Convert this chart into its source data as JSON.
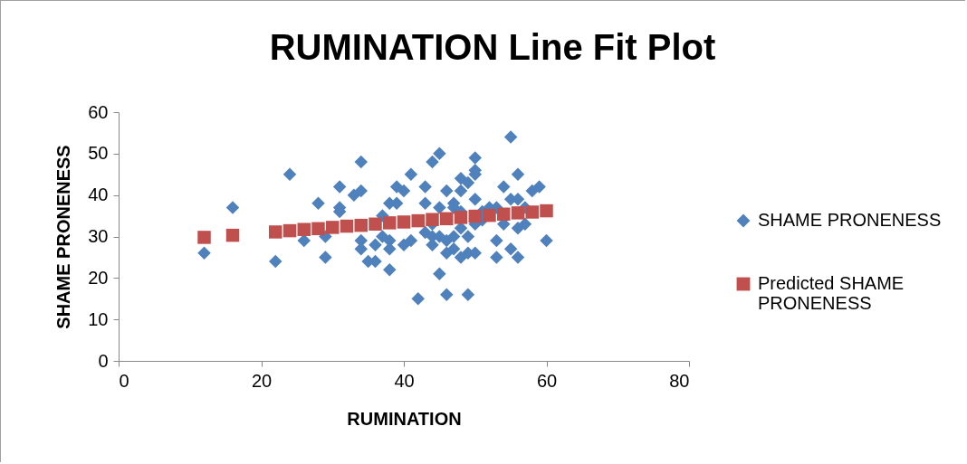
{
  "chart_data": {
    "type": "scatter",
    "title": "RUMINATION Line Fit  Plot",
    "xlabel": "RUMINATION",
    "ylabel": "SHAME PRONENESS",
    "xlim": [
      0,
      80
    ],
    "ylim": [
      0,
      60
    ],
    "xticks": [
      0,
      20,
      40,
      60,
      80
    ],
    "yticks": [
      0,
      10,
      20,
      30,
      40,
      50,
      60
    ],
    "grid": false,
    "legend": "right",
    "marker": "diamond",
    "series": [
      {
        "name": "SHAME PRONENESS",
        "color": "#4f81bd",
        "x": [
          12,
          16,
          22,
          24,
          26,
          28,
          29,
          29,
          31,
          31,
          31,
          33,
          34,
          34,
          34,
          34,
          35,
          36,
          36,
          37,
          37,
          38,
          38,
          38,
          38,
          39,
          39,
          40,
          40,
          41,
          41,
          42,
          43,
          43,
          43,
          44,
          44,
          44,
          44,
          45,
          45,
          45,
          45,
          46,
          46,
          46,
          46,
          47,
          47,
          47,
          47,
          48,
          48,
          48,
          48,
          48,
          49,
          49,
          49,
          49,
          50,
          50,
          50,
          50,
          50,
          50,
          51,
          51,
          52,
          53,
          53,
          53,
          54,
          54,
          55,
          55,
          55,
          56,
          56,
          56,
          56,
          57,
          57,
          58,
          59,
          60
        ],
        "values": [
          26,
          37,
          24,
          45,
          29,
          38,
          25,
          30,
          37,
          42,
          36,
          40,
          48,
          41,
          29,
          27,
          24,
          24,
          28,
          35,
          30,
          22,
          38,
          29,
          27,
          42,
          38,
          28,
          41,
          45,
          29,
          15,
          38,
          42,
          31,
          48,
          33,
          28,
          30,
          50,
          21,
          37,
          30,
          41,
          16,
          26,
          29,
          38,
          37,
          30,
          27,
          44,
          25,
          32,
          36,
          41,
          16,
          26,
          43,
          30,
          49,
          46,
          45,
          39,
          26,
          33,
          36,
          34,
          37,
          25,
          29,
          37,
          42,
          33,
          54,
          39,
          27,
          45,
          25,
          39,
          32,
          33,
          37,
          41,
          42,
          29
        ]
      },
      {
        "name": "Predicted SHAME PRONENESS",
        "color": "#c0504d",
        "marker": "square",
        "x": [
          12,
          16,
          22,
          24,
          26,
          28,
          30,
          32,
          34,
          36,
          38,
          40,
          42,
          44,
          46,
          48,
          50,
          52,
          54,
          56,
          58,
          60
        ],
        "values": [
          29.8,
          30.3,
          31.1,
          31.4,
          31.7,
          31.9,
          32.2,
          32.5,
          32.7,
          33.0,
          33.3,
          33.5,
          33.8,
          34.1,
          34.3,
          34.6,
          34.9,
          35.1,
          35.4,
          35.7,
          35.9,
          36.2
        ]
      }
    ]
  }
}
